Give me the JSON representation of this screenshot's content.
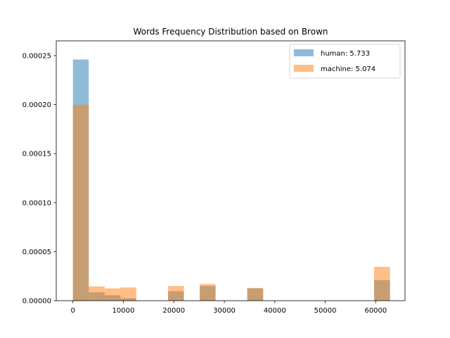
{
  "chart_data": {
    "type": "bar",
    "title": "Words Frequency Distribution based on Brown",
    "xlabel": "",
    "ylabel": "",
    "xlim": [
      -3300,
      65800
    ],
    "ylim": [
      0,
      0.000265
    ],
    "grid": false,
    "legend_position": "top-right",
    "bin_edges": [
      0,
      3141,
      6282,
      9423,
      12564,
      15705,
      18846,
      21987,
      25128,
      28269,
      31410,
      34551,
      37692,
      40833,
      43974,
      47115,
      50256,
      53397,
      56538,
      59679,
      62820
    ],
    "series": [
      {
        "name": "human: 5.733",
        "color": "#1f77b4",
        "opacity": 0.5,
        "values": [
          0.000246,
          8.5e-06,
          5.5e-06,
          2.5e-06,
          0,
          0,
          9.5e-06,
          0,
          1.5e-05,
          0,
          0,
          1.25e-05,
          0,
          0,
          0,
          0,
          0,
          0,
          0,
          2.1e-05
        ]
      },
      {
        "name": "machine: 5.074",
        "color": "#ff7f0e",
        "opacity": 0.5,
        "values": [
          0.0002,
          1.45e-05,
          1.25e-05,
          1.35e-05,
          0,
          0,
          1.5e-05,
          0,
          1.7e-05,
          0,
          0,
          1.3e-05,
          0,
          0,
          0,
          0,
          0,
          0,
          0,
          3.45e-05
        ]
      }
    ],
    "x_ticks": [
      {
        "value": 0,
        "label": "0"
      },
      {
        "value": 10000,
        "label": "10000"
      },
      {
        "value": 20000,
        "label": "20000"
      },
      {
        "value": 30000,
        "label": "30000"
      },
      {
        "value": 40000,
        "label": "40000"
      },
      {
        "value": 50000,
        "label": "50000"
      },
      {
        "value": 60000,
        "label": "60000"
      }
    ],
    "y_ticks": [
      {
        "value": 0,
        "label": "0.00000"
      },
      {
        "value": 5e-05,
        "label": "0.00005"
      },
      {
        "value": 0.0001,
        "label": "0.00010"
      },
      {
        "value": 0.00015,
        "label": "0.00015"
      },
      {
        "value": 0.0002,
        "label": "0.00020"
      },
      {
        "value": 0.00025,
        "label": "0.00025"
      }
    ]
  }
}
